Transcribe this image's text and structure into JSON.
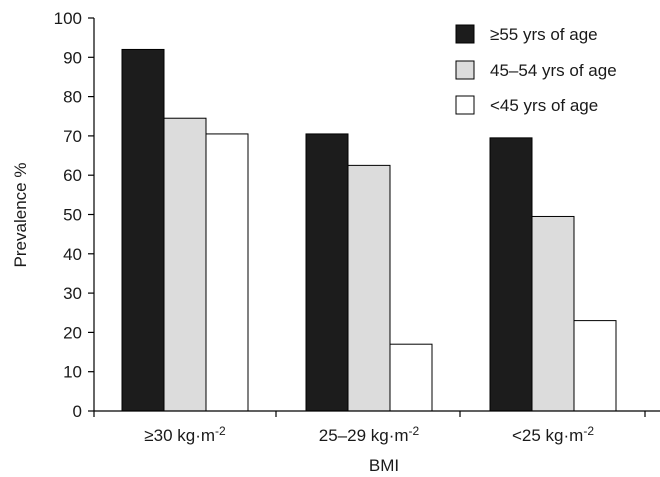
{
  "chart_data": {
    "type": "bar",
    "xlabel": "BMI",
    "ylabel": "Prevalence %",
    "ylim": [
      0,
      100
    ],
    "yticks": [
      0,
      10,
      20,
      30,
      40,
      50,
      60,
      70,
      80,
      90,
      100
    ],
    "categories": [
      {
        "base": "≥30 kg·m",
        "sup": "-2"
      },
      {
        "base": "25–29 kg·m",
        "sup": "-2"
      },
      {
        "base": "<25 kg·m",
        "sup": "-2"
      }
    ],
    "series": [
      {
        "name": "≥55 yrs of age",
        "color": "#1c1c1c",
        "values": [
          92,
          70.5,
          69.5
        ]
      },
      {
        "name": "45–54 yrs of age",
        "color": "#dcdcdc",
        "values": [
          74.5,
          62.5,
          49.5
        ]
      },
      {
        "name": "<45 yrs of age",
        "color": "#ffffff",
        "values": [
          70.5,
          17,
          23
        ]
      }
    ],
    "legend_position": "top-right",
    "grid": false
  }
}
